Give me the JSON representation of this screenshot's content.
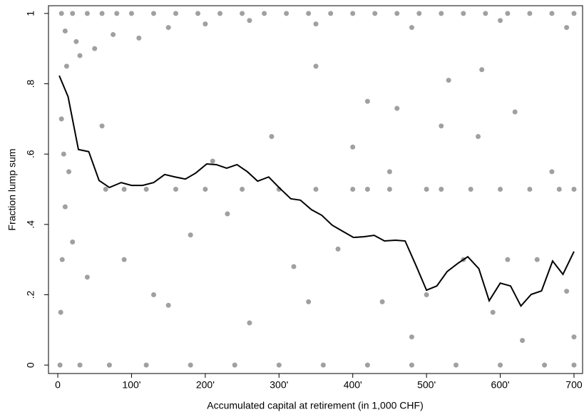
{
  "chart_data": {
    "type": "scatter",
    "xlabel": "Accumulated capital at retirement (in 1,000 CHF)",
    "ylabel": "Fraction lump sum",
    "xlim": [
      -12.6,
      712.6
    ],
    "ylim": [
      -0.024,
      1.022
    ],
    "xticks": [
      0,
      {
        "value": 100,
        "label": "100'"
      },
      {
        "value": 200,
        "label": "200'"
      },
      {
        "value": 300,
        "label": "300'"
      },
      {
        "value": 400,
        "label": "400'"
      },
      {
        "value": 500,
        "label": "500'"
      },
      {
        "value": 600,
        "label": "600'"
      },
      700
    ],
    "yticks": [
      0,
      {
        "value": 0.2,
        "label": ".2"
      },
      {
        "value": 0.4,
        "label": ".4"
      },
      {
        "value": 0.6,
        "label": ".6"
      },
      {
        "value": 0.8,
        "label": ".8"
      },
      1
    ],
    "series": [
      {
        "type": "scatter",
        "color": "#a0a0a0",
        "x": [
          5,
          20,
          40,
          60,
          80,
          100,
          130,
          160,
          190,
          220,
          250,
          280,
          310,
          340,
          370,
          400,
          430,
          460,
          490,
          520,
          550,
          580,
          610,
          640,
          670,
          700,
          10,
          25,
          50,
          75,
          110,
          150,
          200,
          260,
          350,
          480,
          600,
          690,
          12,
          30,
          3,
          30,
          70,
          120,
          180,
          240,
          300,
          360,
          420,
          480,
          540,
          600,
          660,
          700,
          65,
          90,
          120,
          160,
          200,
          250,
          300,
          350,
          400,
          420,
          450,
          500,
          520,
          560,
          600,
          640,
          680,
          700,
          5,
          8,
          10,
          6,
          4,
          15,
          20,
          40,
          60,
          90,
          130,
          150,
          180,
          210,
          230,
          260,
          290,
          320,
          350,
          380,
          400,
          420,
          440,
          460,
          480,
          500,
          530,
          550,
          570,
          590,
          610,
          630,
          650,
          670,
          690,
          700,
          575,
          620,
          520,
          450,
          340
        ],
        "values": [
          1,
          1,
          1,
          1,
          1,
          1,
          1,
          1,
          1,
          1,
          1,
          1,
          1,
          1,
          1,
          1,
          1,
          1,
          1,
          1,
          1,
          1,
          1,
          1,
          1,
          1,
          0.95,
          0.92,
          0.9,
          0.94,
          0.93,
          0.96,
          0.97,
          0.98,
          0.97,
          0.96,
          0.98,
          0.96,
          0.85,
          0.88,
          0,
          0,
          0,
          0,
          0,
          0,
          0,
          0,
          0,
          0,
          0,
          0,
          0,
          0,
          0.5,
          0.5,
          0.5,
          0.5,
          0.5,
          0.5,
          0.5,
          0.5,
          0.5,
          0.5,
          0.5,
          0.5,
          0.5,
          0.5,
          0.5,
          0.5,
          0.5,
          0.5,
          0.7,
          0.6,
          0.45,
          0.3,
          0.15,
          0.55,
          0.35,
          0.25,
          0.68,
          0.3,
          0.2,
          0.17,
          0.37,
          0.58,
          0.43,
          0.12,
          0.65,
          0.28,
          0.85,
          0.33,
          0.62,
          0.75,
          0.18,
          0.73,
          0.08,
          0.2,
          0.81,
          0.3,
          0.65,
          0.15,
          0.3,
          0.07,
          0.3,
          0.55,
          0.21,
          0.08,
          0.84,
          0.72,
          0.68,
          0.55,
          0.18
        ]
      },
      {
        "type": "line",
        "color": "#000000",
        "x": [
          2,
          14,
          28,
          42,
          56,
          70,
          86,
          100,
          115,
          130,
          145,
          159,
          173,
          187,
          202,
          215,
          229,
          243,
          257,
          271,
          286,
          300,
          316,
          329,
          344,
          358,
          372,
          386,
          401,
          415,
          429,
          443,
          458,
          471,
          486,
          500,
          514,
          528,
          543,
          556,
          571,
          585,
          600,
          614,
          628,
          642,
          656,
          671,
          685,
          700
        ],
        "values": [
          0.823,
          0.763,
          0.613,
          0.607,
          0.525,
          0.505,
          0.519,
          0.511,
          0.511,
          0.519,
          0.542,
          0.535,
          0.529,
          0.546,
          0.572,
          0.57,
          0.56,
          0.57,
          0.55,
          0.523,
          0.535,
          0.505,
          0.473,
          0.469,
          0.442,
          0.426,
          0.398,
          0.381,
          0.363,
          0.365,
          0.369,
          0.353,
          0.355,
          0.353,
          0.282,
          0.213,
          0.225,
          0.266,
          0.29,
          0.308,
          0.274,
          0.183,
          0.233,
          0.225,
          0.168,
          0.201,
          0.211,
          0.296,
          0.258,
          0.323
        ]
      }
    ]
  }
}
